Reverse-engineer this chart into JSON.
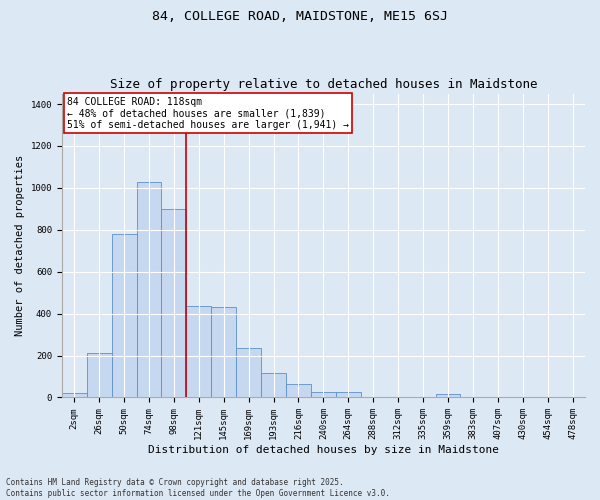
{
  "title": "84, COLLEGE ROAD, MAIDSTONE, ME15 6SJ",
  "subtitle": "Size of property relative to detached houses in Maidstone",
  "xlabel": "Distribution of detached houses by size in Maidstone",
  "ylabel": "Number of detached properties",
  "bar_labels": [
    "2sqm",
    "26sqm",
    "50sqm",
    "74sqm",
    "98sqm",
    "121sqm",
    "145sqm",
    "169sqm",
    "193sqm",
    "216sqm",
    "240sqm",
    "264sqm",
    "288sqm",
    "312sqm",
    "335sqm",
    "359sqm",
    "383sqm",
    "407sqm",
    "430sqm",
    "454sqm",
    "478sqm"
  ],
  "bar_values": [
    20,
    210,
    780,
    1030,
    900,
    435,
    430,
    235,
    115,
    65,
    25,
    25,
    0,
    0,
    0,
    18,
    0,
    0,
    0,
    0,
    0
  ],
  "bar_color": "#c5d8f0",
  "bar_edgecolor": "#5b8fc9",
  "vline_x": 4.5,
  "vline_color": "#cc0000",
  "annotation_text": "84 COLLEGE ROAD: 118sqm\n← 48% of detached houses are smaller (1,839)\n51% of semi-detached houses are larger (1,941) →",
  "annotation_box_color": "#ffffff",
  "annotation_box_edgecolor": "#cc0000",
  "ylim": [
    0,
    1450
  ],
  "yticks": [
    0,
    200,
    400,
    600,
    800,
    1000,
    1200,
    1400
  ],
  "bg_color": "#dde8f5",
  "plot_bg_color": "#dde8f5",
  "grid_color": "#ffffff",
  "footer": "Contains HM Land Registry data © Crown copyright and database right 2025.\nContains public sector information licensed under the Open Government Licence v3.0.",
  "title_fontsize": 9.5,
  "xlabel_fontsize": 8,
  "ylabel_fontsize": 7.5,
  "tick_fontsize": 6.5,
  "footer_fontsize": 5.5,
  "annot_fontsize": 7
}
